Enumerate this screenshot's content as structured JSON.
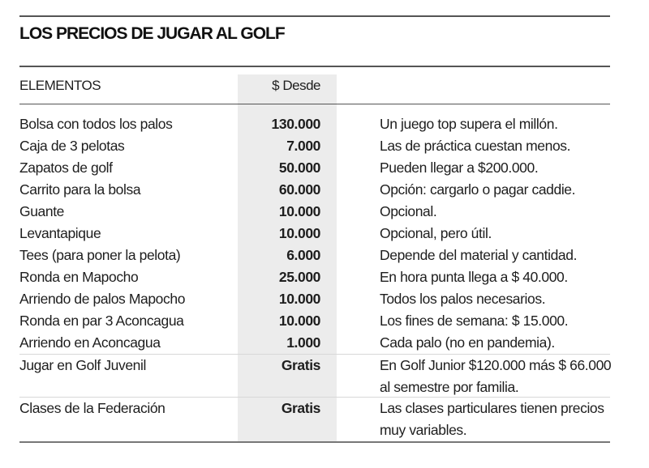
{
  "title": "LOS PRECIOS DE JUGAR AL GOLF",
  "headers": {
    "item": "ELEMENTOS",
    "price": "$ Desde",
    "note": ""
  },
  "rows": [
    {
      "item": "Bolsa con todos los palos",
      "price": "130.000",
      "note": "Un juego top supera el millón."
    },
    {
      "item": "Caja de 3 pelotas",
      "price": "7.000",
      "note": "Las de práctica cuestan menos."
    },
    {
      "item": "Zapatos de golf",
      "price": "50.000",
      "note": "Pueden llegar a $200.000."
    },
    {
      "item": "Carrito para la bolsa",
      "price": "60.000",
      "note": "Opción: cargarlo o pagar caddie."
    },
    {
      "item": "Guante",
      "price": "10.000",
      "note": "Opcional."
    },
    {
      "item": "Levantapique",
      "price": "10.000",
      "note": "Opcional, pero útil."
    },
    {
      "item": "Tees (para poner la pelota)",
      "price": "6.000",
      "note": "Depende del material y cantidad."
    },
    {
      "item": "Ronda en Mapocho",
      "price": "25.000",
      "note": "En hora punta llega a $ 40.000."
    },
    {
      "item": "Arriendo de palos Mapocho",
      "price": "10.000",
      "note": "Todos los palos necesarios."
    },
    {
      "item": "Ronda en par 3 Aconcagua",
      "price": "10.000",
      "note": "Los fines de semana: $ 15.000."
    },
    {
      "item": "Arriendo en Aconcagua",
      "price": "1.000",
      "note": "Cada palo (no en pandemia)."
    },
    {
      "item": "Jugar en Golf Juvenil",
      "price": "Gratis",
      "note": "En Golf Junior $120.000 más $ 66.000 al semestre por familia."
    },
    {
      "item": "Clases de la Federación",
      "price": "Gratis",
      "note": "Las clases particulares tienen precios muy variables."
    }
  ]
}
